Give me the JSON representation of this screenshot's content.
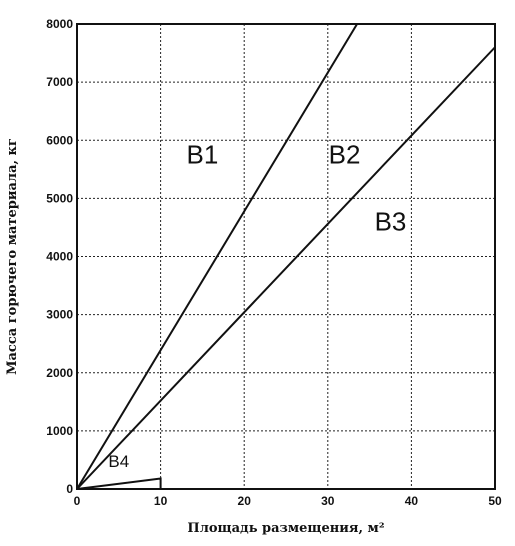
{
  "chart_data": {
    "type": "line",
    "xlabel": "Площадь размещения, м²",
    "ylabel": "Масса горючего материала, кг",
    "xlim": [
      0,
      50
    ],
    "ylim": [
      0,
      8000
    ],
    "x_ticks": [
      "0",
      "10",
      "20",
      "30",
      "40",
      "50"
    ],
    "y_ticks": [
      "0",
      "1000",
      "2000",
      "3000",
      "4000",
      "5000",
      "6000",
      "7000",
      "8000"
    ],
    "grid": true,
    "series": [
      {
        "points": [
          [
            0,
            0
          ],
          [
            33.5,
            8000
          ]
        ]
      },
      {
        "points": [
          [
            0,
            0
          ],
          [
            50,
            7600
          ]
        ]
      },
      {
        "points": [
          [
            0,
            0
          ],
          [
            10,
            180
          ],
          [
            10,
            0
          ]
        ]
      }
    ],
    "annotations": [
      {
        "text": "В1",
        "x": 15,
        "y": 5600
      },
      {
        "text": "В2",
        "x": 32,
        "y": 5600
      },
      {
        "text": "В3",
        "x": 37.5,
        "y": 4450
      },
      {
        "text": "В4",
        "x": 5,
        "y": 380
      }
    ]
  }
}
